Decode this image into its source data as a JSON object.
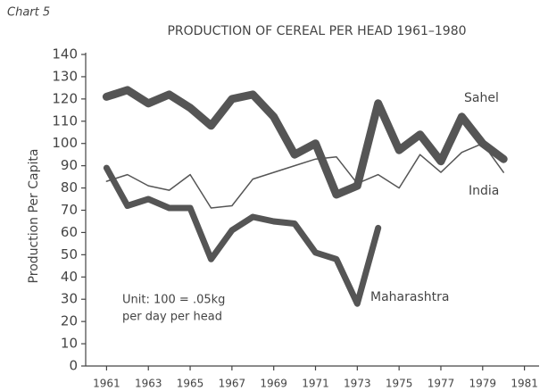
{
  "chart_data": {
    "type": "line",
    "label": "Chart 5",
    "title": "PRODUCTION OF CEREAL PER HEAD 1961–1980",
    "y_label": "Production Per Capita",
    "annotations": [
      "Unit: 100 = .05kg",
      "per day per head"
    ],
    "x": [
      1961,
      1962,
      1963,
      1964,
      1965,
      1966,
      1967,
      1968,
      1969,
      1970,
      1971,
      1972,
      1973,
      1974,
      1975,
      1976,
      1977,
      1978,
      1979,
      1980
    ],
    "series": [
      {
        "name": "Sahel",
        "color": "#555555",
        "linewidth": 9,
        "values": [
          121,
          124,
          118,
          122,
          116,
          108,
          120,
          122,
          112,
          95,
          100,
          77,
          81,
          118,
          97,
          104,
          92,
          112,
          100,
          93
        ]
      },
      {
        "name": "India",
        "color": "#555555",
        "linewidth": 1.5,
        "values": [
          83,
          86,
          81,
          79,
          86,
          71,
          72,
          84,
          87,
          90,
          93,
          94,
          82,
          86,
          80,
          95,
          87,
          96,
          100,
          87
        ]
      },
      {
        "name": "Maharashtra",
        "color": "#555555",
        "linewidth": 7,
        "values": [
          89,
          72,
          75,
          71,
          71,
          48,
          61,
          67,
          65,
          64,
          51,
          48,
          28,
          62,
          null,
          null,
          null,
          null,
          null,
          null
        ]
      }
    ],
    "xlim": [
      1960,
      1981.7
    ],
    "xticks": [
      1961,
      1963,
      1965,
      1967,
      1969,
      1971,
      1973,
      1975,
      1977,
      1979,
      1981
    ],
    "ylim": [
      0,
      140
    ],
    "yticks": [
      0,
      10,
      20,
      30,
      40,
      50,
      60,
      70,
      80,
      90,
      100,
      110,
      120,
      130,
      140
    ],
    "grid": false
  }
}
